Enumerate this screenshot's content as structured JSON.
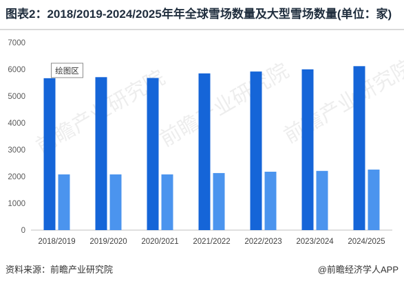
{
  "title": "图表2：2018/2019-2024/2025年年全球雪场数量及大型雪场数量(单位：家)",
  "source": "资料来源：前瞻产业研究院",
  "brand": "@前瞻经济学人APP",
  "watermark": "前瞻产业研究院",
  "chart_data": {
    "type": "bar",
    "categories": [
      "2018/2019",
      "2019/2020",
      "2020/2021",
      "2021/2022",
      "2022/2023",
      "2023/2024",
      "2024/2025"
    ],
    "series": [
      {
        "values": [
          5670,
          5710,
          5680,
          5850,
          5920,
          6000,
          6120
        ],
        "color": "#1565d8"
      },
      {
        "values": [
          2080,
          2080,
          2080,
          2130,
          2180,
          2210,
          2260
        ],
        "color": "#4b94ee"
      }
    ],
    "ylim": [
      0,
      7000
    ],
    "yticks": [
      0,
      1000,
      2000,
      3000,
      4000,
      5000,
      6000,
      7000
    ],
    "annotation": "绘图区",
    "grid": false,
    "legend": "none"
  }
}
